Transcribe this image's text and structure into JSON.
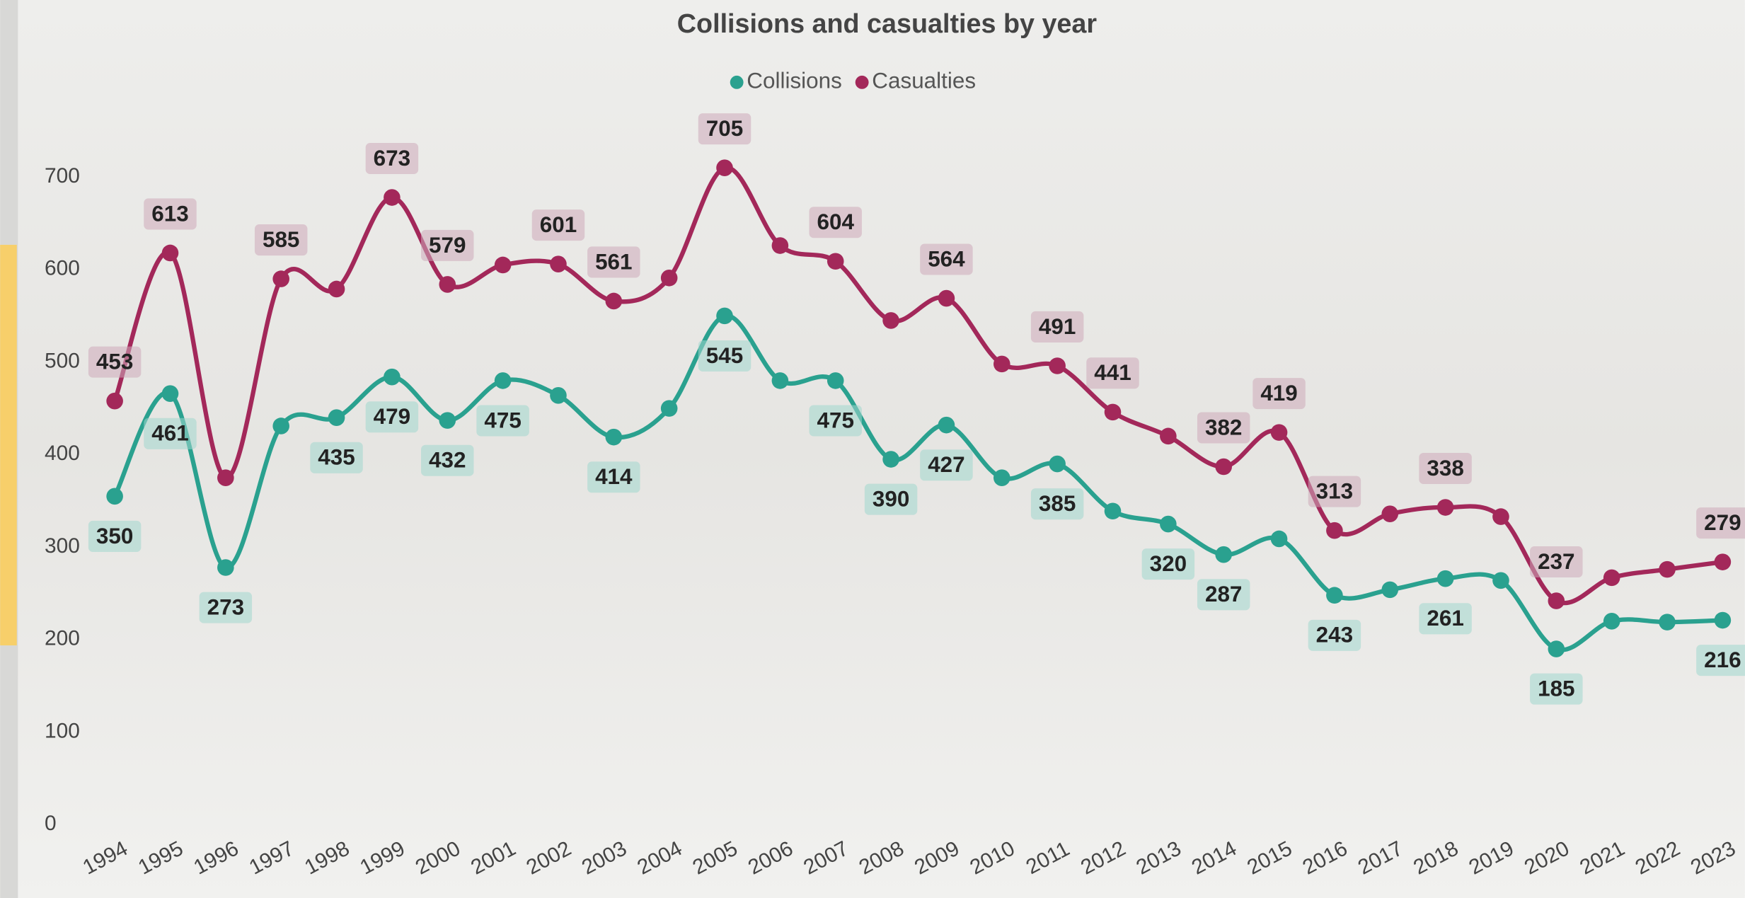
{
  "chart_data": {
    "type": "line",
    "title": "Collisions and casualties by year",
    "categories": [
      "1994",
      "1995",
      "1996",
      "1997",
      "1998",
      "1999",
      "2000",
      "2001",
      "2002",
      "2003",
      "2004",
      "2005",
      "2006",
      "2007",
      "2008",
      "2009",
      "2010",
      "2011",
      "2012",
      "2013",
      "2014",
      "2015",
      "2016",
      "2017",
      "2018",
      "2019",
      "2020",
      "2021",
      "2022",
      "2023"
    ],
    "series": [
      {
        "name": "Collisions",
        "color": "#2aa18f",
        "values": [
          350,
          461,
          273,
          426,
          435,
          479,
          432,
          475,
          459,
          414,
          445,
          545,
          475,
          475,
          390,
          427,
          370,
          385,
          334,
          320,
          287,
          304,
          243,
          249,
          261,
          259,
          185,
          215,
          214,
          216
        ],
        "value_labels": [
          "350",
          "461",
          "273",
          null,
          "435",
          "479",
          "432",
          "475",
          null,
          "414",
          null,
          "545",
          null,
          "475",
          "390",
          "427",
          null,
          "385",
          null,
          "320",
          "287",
          null,
          "243",
          null,
          "261",
          null,
          "185",
          null,
          null,
          "216"
        ]
      },
      {
        "name": "Casualties",
        "color": "#a3285a",
        "values": [
          453,
          613,
          370,
          585,
          574,
          673,
          579,
          600,
          601,
          561,
          586,
          705,
          621,
          604,
          540,
          564,
          493,
          491,
          441,
          415,
          382,
          419,
          313,
          331,
          338,
          328,
          237,
          262,
          271,
          279
        ],
        "value_labels": [
          "453",
          "613",
          null,
          "585",
          null,
          "673",
          "579",
          null,
          "601",
          "561",
          null,
          "705",
          null,
          "604",
          null,
          "564",
          null,
          "491",
          "441",
          null,
          "382",
          "419",
          "313",
          null,
          "338",
          null,
          "237",
          null,
          null,
          "279"
        ]
      }
    ],
    "ylim": [
      0,
      700
    ],
    "yticks": [
      0,
      100,
      200,
      300,
      400,
      500,
      600,
      700
    ],
    "grid": false,
    "legend": "top"
  }
}
